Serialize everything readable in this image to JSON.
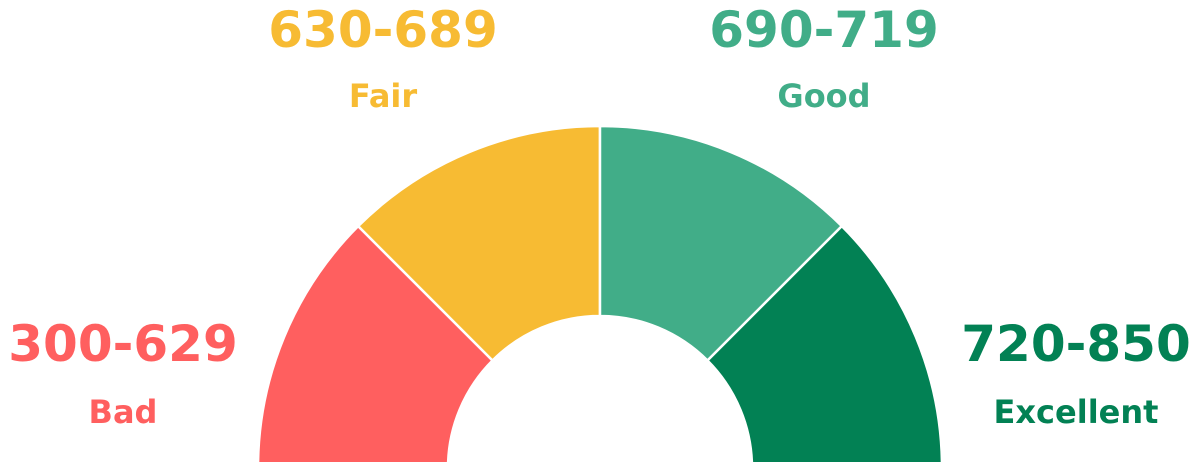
{
  "gauge": {
    "segments": [
      {
        "key": "bad",
        "range": "300-629",
        "label": "Bad",
        "color": "#ff5f5f"
      },
      {
        "key": "fair",
        "range": "630-689",
        "label": "Fair",
        "color": "#f7bb33"
      },
      {
        "key": "good",
        "range": "690-719",
        "label": "Good",
        "color": "#41ad88"
      },
      {
        "key": "excellent",
        "range": "720-850",
        "label": "Excellent",
        "color": "#028154"
      }
    ],
    "divider_color": "#ffffff"
  }
}
